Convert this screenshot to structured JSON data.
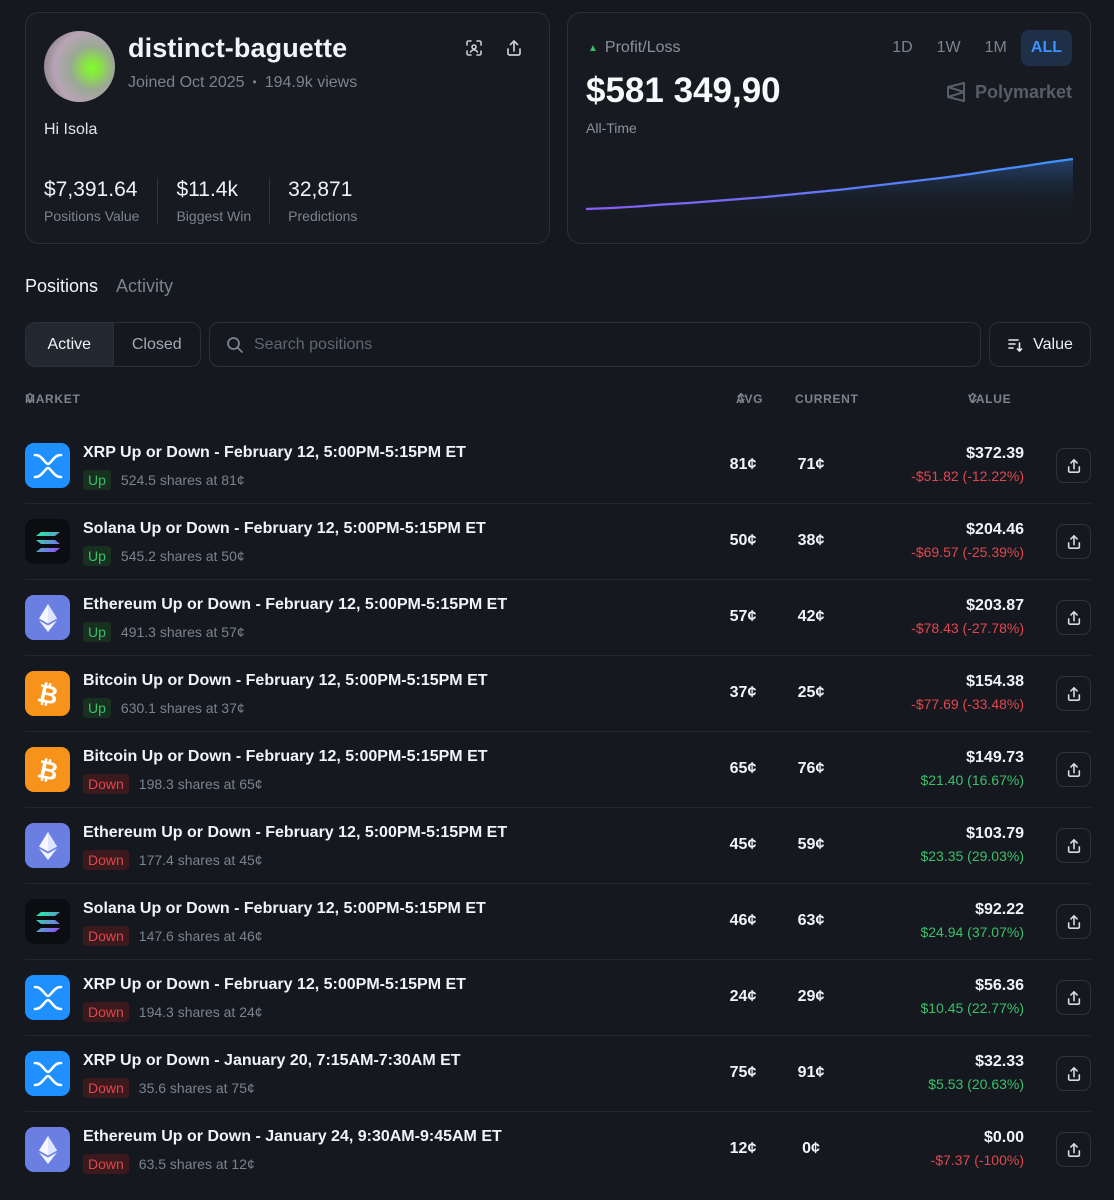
{
  "profile": {
    "username": "distinct-baguette",
    "joined": "Joined Oct 2025",
    "separator": "•",
    "views": "194.9k views",
    "bio": "Hi Isola",
    "stats": [
      {
        "value": "$7,391.64",
        "label": "Positions Value"
      },
      {
        "value": "$11.4k",
        "label": "Biggest Win"
      },
      {
        "value": "32,871",
        "label": "Predictions"
      }
    ]
  },
  "pnl": {
    "label": "Profit/Loss",
    "value": "$581 349,90",
    "period": "All-Time",
    "brand": "Polymarket",
    "ranges": [
      "1D",
      "1W",
      "1M",
      "ALL"
    ],
    "active_range": "ALL",
    "trend": [
      0,
      2,
      5,
      9,
      12,
      16,
      20,
      24,
      29,
      34,
      39,
      45,
      51,
      57,
      63,
      70,
      78,
      85,
      93,
      100
    ],
    "colors": {
      "accent": "#3c93ff",
      "line_start": "#8a5cf6",
      "line_end": "#3c93ff"
    }
  },
  "tabs": {
    "positions": "Positions",
    "activity": "Activity"
  },
  "filters": {
    "active": "Active",
    "closed": "Closed"
  },
  "search": {
    "placeholder": "Search positions"
  },
  "sort": {
    "label": "Value"
  },
  "table": {
    "headers": {
      "market": "MARKET",
      "avg": "AVG",
      "current": "CURRENT",
      "value": "VALUE"
    },
    "rows": [
      {
        "coin": "xrp",
        "title": "XRP Up or Down - February 12, 5:00PM-5:15PM ET",
        "side": "Up",
        "shares": "524.5 shares at 81¢",
        "avg": "81¢",
        "current": "71¢",
        "value": "$372.39",
        "change": "-$51.82 (-12.22%)",
        "positive": false
      },
      {
        "coin": "sol",
        "title": "Solana Up or Down - February 12, 5:00PM-5:15PM ET",
        "side": "Up",
        "shares": "545.2 shares at 50¢",
        "avg": "50¢",
        "current": "38¢",
        "value": "$204.46",
        "change": "-$69.57 (-25.39%)",
        "positive": false
      },
      {
        "coin": "eth",
        "title": "Ethereum Up or Down - February 12, 5:00PM-5:15PM ET",
        "side": "Up",
        "shares": "491.3 shares at 57¢",
        "avg": "57¢",
        "current": "42¢",
        "value": "$203.87",
        "change": "-$78.43 (-27.78%)",
        "positive": false
      },
      {
        "coin": "btc",
        "title": "Bitcoin Up or Down - February 12, 5:00PM-5:15PM ET",
        "side": "Up",
        "shares": "630.1 shares at 37¢",
        "avg": "37¢",
        "current": "25¢",
        "value": "$154.38",
        "change": "-$77.69 (-33.48%)",
        "positive": false
      },
      {
        "coin": "btc",
        "title": "Bitcoin Up or Down - February 12, 5:00PM-5:15PM ET",
        "side": "Down",
        "shares": "198.3 shares at 65¢",
        "avg": "65¢",
        "current": "76¢",
        "value": "$149.73",
        "change": "$21.40 (16.67%)",
        "positive": true
      },
      {
        "coin": "eth",
        "title": "Ethereum Up or Down - February 12, 5:00PM-5:15PM ET",
        "side": "Down",
        "shares": "177.4 shares at 45¢",
        "avg": "45¢",
        "current": "59¢",
        "value": "$103.79",
        "change": "$23.35 (29.03%)",
        "positive": true
      },
      {
        "coin": "sol",
        "title": "Solana Up or Down - February 12, 5:00PM-5:15PM ET",
        "side": "Down",
        "shares": "147.6 shares at 46¢",
        "avg": "46¢",
        "current": "63¢",
        "value": "$92.22",
        "change": "$24.94 (37.07%)",
        "positive": true
      },
      {
        "coin": "xrp",
        "title": "XRP Up or Down - February 12, 5:00PM-5:15PM ET",
        "side": "Down",
        "shares": "194.3 shares at 24¢",
        "avg": "24¢",
        "current": "29¢",
        "value": "$56.36",
        "change": "$10.45 (22.77%)",
        "positive": true
      },
      {
        "coin": "xrp",
        "title": "XRP Up or Down - January 20, 7:15AM-7:30AM ET",
        "side": "Down",
        "shares": "35.6 shares at 75¢",
        "avg": "75¢",
        "current": "91¢",
        "value": "$32.33",
        "change": "$5.53 (20.63%)",
        "positive": true
      },
      {
        "coin": "eth",
        "title": "Ethereum Up or Down - January 24, 9:30AM-9:45AM ET",
        "side": "Down",
        "shares": "63.5 shares at 12¢",
        "avg": "12¢",
        "current": "0¢",
        "value": "$0.00",
        "change": "-$7.37 (-100%)",
        "positive": false
      }
    ]
  },
  "coin_colors": {
    "xrp": "#1e90ff",
    "sol": "#0b0d10",
    "eth": "#6b7fe3",
    "btc": "#f7931a"
  },
  "icons": [
    "scan-icon",
    "share-icon",
    "search-icon",
    "sort-icon",
    "sort-arrows-icon",
    "polymarket-logo-icon"
  ]
}
